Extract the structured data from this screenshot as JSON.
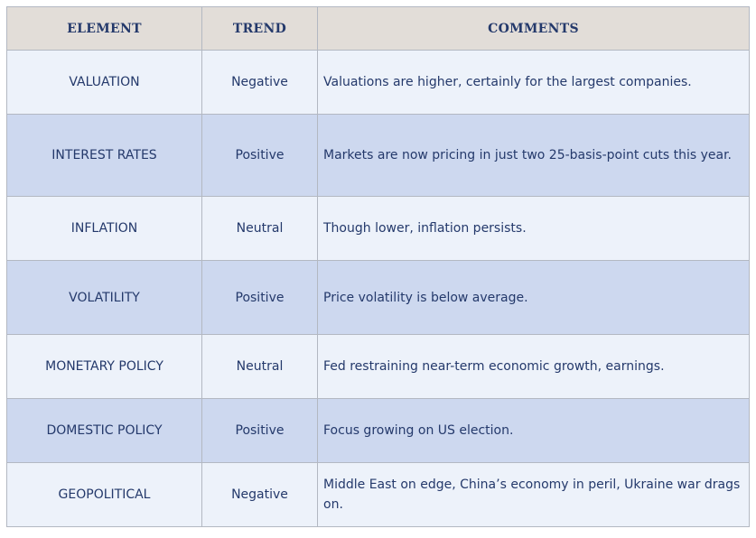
{
  "headers": {
    "element": "ELEMENT",
    "trend": "TREND",
    "comments": "COMMENTS"
  },
  "rows": [
    {
      "element": "VALUATION",
      "trend": "Negative",
      "comment": "Valuations are higher, certainly for the largest companies."
    },
    {
      "element": "INTEREST RATES",
      "trend": "Positive",
      "comment": "Markets are now pricing in just two 25-basis-point cuts this year."
    },
    {
      "element": "INFLATION",
      "trend": "Neutral",
      "comment": "Though lower, inflation persists."
    },
    {
      "element": "VOLATILITY",
      "trend": "Positive",
      "comment": "Price volatility is below average."
    },
    {
      "element": "MONETARY POLICY",
      "trend": "Neutral",
      "comment": "Fed restraining near-term economic growth, earnings."
    },
    {
      "element": "DOMESTIC POLICY",
      "trend": "Positive",
      "comment": "Focus growing on US election."
    },
    {
      "element": "GEOPOLITICAL",
      "trend": "Negative",
      "comment": "Middle East on edge, China’s economy in peril, Ukraine war drags on."
    }
  ],
  "colors": {
    "header_background": "#e2ddd8",
    "row_light": "#edf2fa",
    "row_dark": "#cdd8ef",
    "text": "#24396b",
    "border": "#b3b8c2"
  }
}
